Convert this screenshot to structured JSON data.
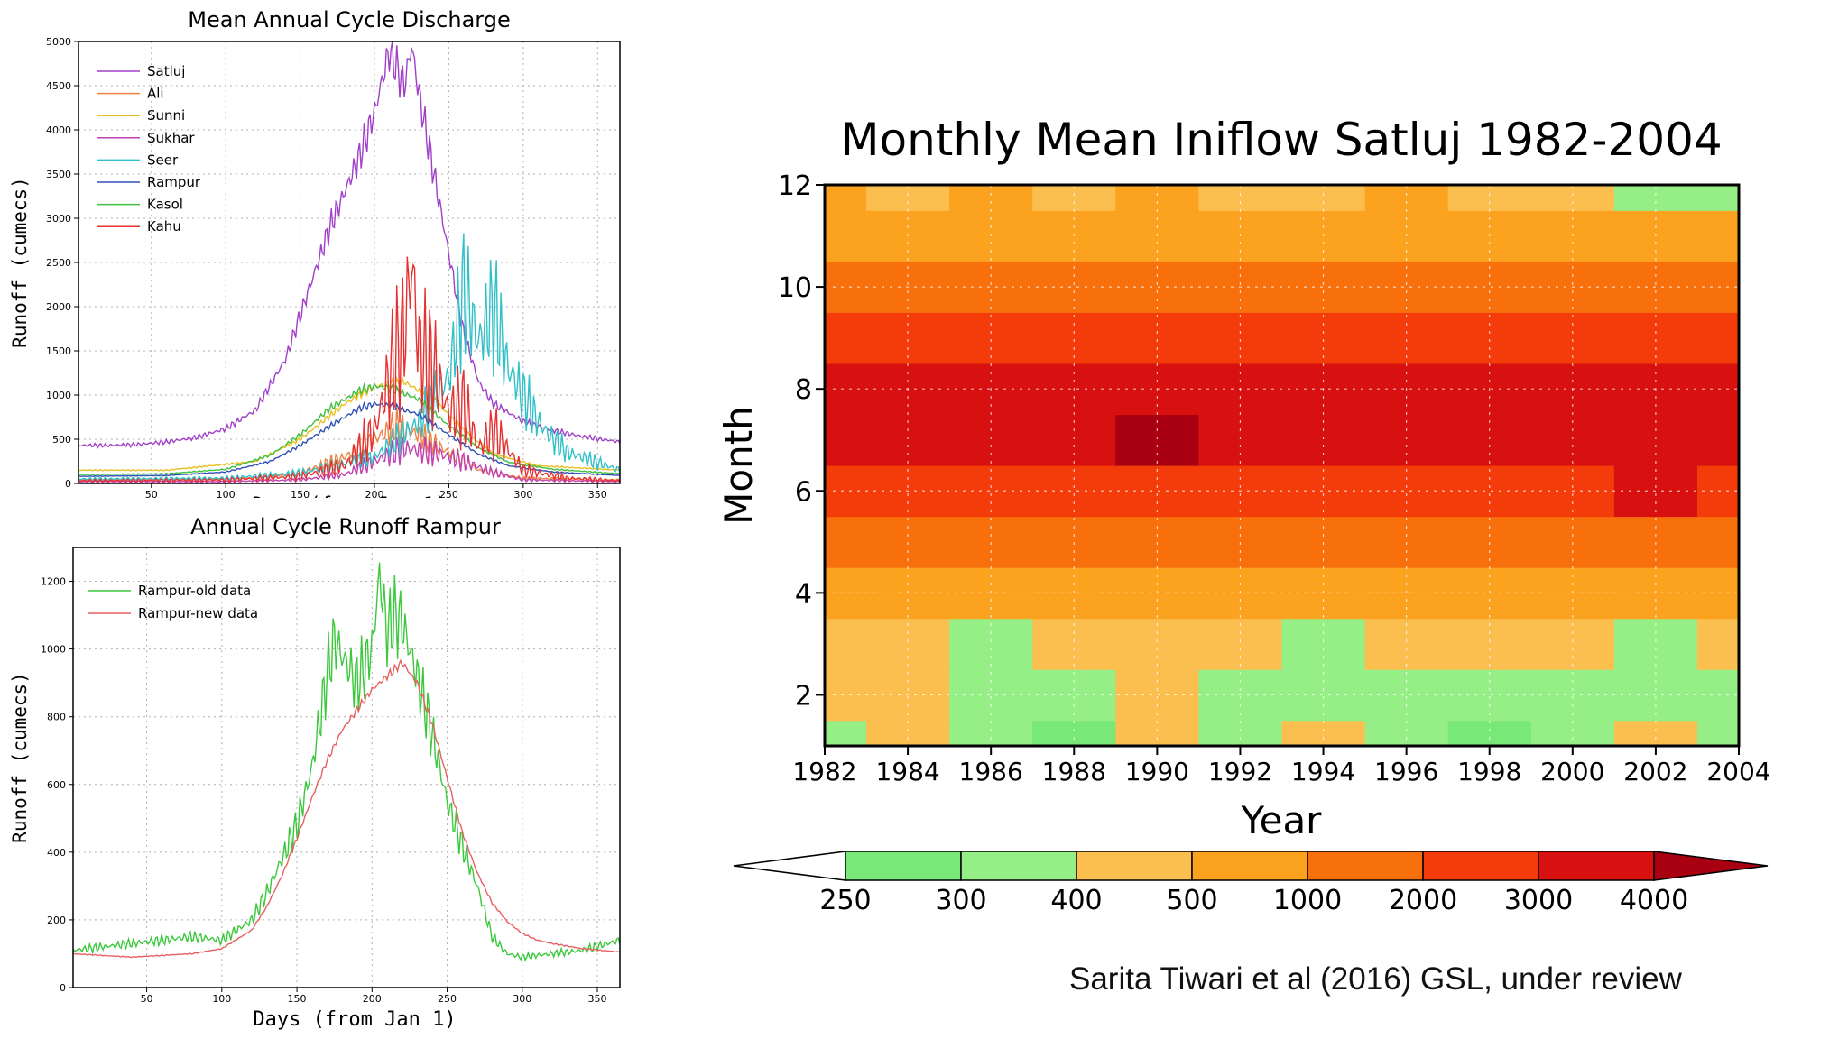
{
  "credit": "Sarita Tiwari et al (2016) GSL, under review",
  "chart_data": [
    {
      "type": "line",
      "title": "Mean Annual Cycle Discharge",
      "xlabel": "Days (from Jan 1)",
      "ylabel": "Runoff (cumecs)",
      "xlim": [
        1,
        365
      ],
      "ylim": [
        0,
        5000
      ],
      "xticks": [
        50,
        100,
        150,
        200,
        250,
        300,
        350
      ],
      "yticks": [
        0,
        500,
        1000,
        1500,
        2000,
        2500,
        3000,
        3500,
        4000,
        4500,
        5000
      ],
      "grid": true,
      "legend_position": "top-left",
      "series": [
        {
          "name": "Satluj",
          "color": "#a040c8",
          "x": [
            1,
            20,
            40,
            60,
            80,
            100,
            120,
            140,
            150,
            160,
            170,
            180,
            190,
            200,
            205,
            210,
            215,
            220,
            225,
            230,
            240,
            250,
            260,
            270,
            280,
            300,
            320,
            340,
            365
          ],
          "y": [
            430,
            430,
            440,
            470,
            520,
            620,
            830,
            1400,
            1900,
            2400,
            2900,
            3300,
            3700,
            4200,
            4550,
            4900,
            4700,
            4500,
            4950,
            4400,
            3500,
            2600,
            1700,
            1150,
            900,
            700,
            600,
            530,
            470
          ]
        },
        {
          "name": "Ali",
          "color": "#f08040",
          "x": [
            1,
            60,
            120,
            150,
            180,
            200,
            215,
            230,
            250,
            270,
            300,
            365
          ],
          "y": [
            40,
            40,
            60,
            120,
            300,
            500,
            650,
            550,
            350,
            150,
            60,
            40
          ]
        },
        {
          "name": "Sunni",
          "color": "#e8c020",
          "x": [
            1,
            60,
            120,
            150,
            180,
            200,
            220,
            240,
            260,
            280,
            310,
            365
          ],
          "y": [
            150,
            150,
            250,
            500,
            900,
            1100,
            1150,
            950,
            600,
            330,
            200,
            150
          ]
        },
        {
          "name": "Sukhar",
          "color": "#c040b0",
          "x": [
            1,
            100,
            150,
            180,
            200,
            220,
            240,
            260,
            280,
            300,
            365
          ],
          "y": [
            20,
            20,
            40,
            100,
            250,
            400,
            350,
            250,
            120,
            40,
            20
          ]
        },
        {
          "name": "Seer",
          "color": "#30c0c8",
          "x": [
            1,
            100,
            150,
            200,
            230,
            250,
            260,
            270,
            280,
            290,
            300,
            310,
            320,
            330,
            365
          ],
          "y": [
            50,
            60,
            120,
            300,
            700,
            1200,
            2200,
            1600,
            2000,
            1300,
            1000,
            700,
            500,
            350,
            150
          ]
        },
        {
          "name": "Rampur",
          "color": "#3050b8",
          "x": [
            1,
            60,
            100,
            130,
            150,
            170,
            190,
            200,
            210,
            230,
            250,
            270,
            290,
            320,
            365
          ],
          "y": [
            80,
            90,
            130,
            250,
            430,
            650,
            850,
            900,
            880,
            780,
            550,
            330,
            200,
            130,
            90
          ]
        },
        {
          "name": "Kasol",
          "color": "#40c040",
          "x": [
            1,
            60,
            100,
            130,
            150,
            170,
            190,
            200,
            210,
            230,
            250,
            270,
            290,
            320,
            365
          ],
          "y": [
            100,
            110,
            160,
            320,
            550,
            850,
            1050,
            1100,
            1080,
            950,
            650,
            400,
            240,
            160,
            110
          ]
        },
        {
          "name": "Kahu",
          "color": "#e83030",
          "x": [
            1,
            100,
            150,
            180,
            200,
            210,
            220,
            225,
            230,
            240,
            250,
            260,
            270,
            280,
            300,
            330,
            365
          ],
          "y": [
            30,
            40,
            80,
            200,
            600,
            1200,
            1700,
            2500,
            1500,
            1300,
            800,
            900,
            400,
            600,
            150,
            60,
            30
          ]
        }
      ]
    },
    {
      "type": "line",
      "title": "Annual Cycle Runoff Rampur",
      "xlabel": "Days (from Jan 1)",
      "ylabel": "Runoff (cumecs)",
      "xlim": [
        1,
        365
      ],
      "ylim": [
        0,
        1300
      ],
      "xticks": [
        50,
        100,
        150,
        200,
        250,
        300,
        350
      ],
      "yticks": [
        0,
        200,
        400,
        600,
        800,
        1000,
        1200
      ],
      "grid": true,
      "legend_position": "top-left",
      "series": [
        {
          "name": "Rampur-old data",
          "color": "#3cc83c",
          "x": [
            1,
            20,
            40,
            60,
            80,
            100,
            120,
            130,
            140,
            150,
            160,
            170,
            175,
            180,
            190,
            200,
            205,
            210,
            215,
            220,
            225,
            230,
            240,
            250,
            260,
            270,
            280,
            290,
            300,
            310,
            320,
            340,
            365
          ],
          "y": [
            110,
            120,
            130,
            140,
            150,
            140,
            200,
            280,
            380,
            480,
            650,
            920,
            1030,
            980,
            900,
            1000,
            1220,
            1050,
            1100,
            1080,
            1000,
            920,
            750,
            550,
            420,
            300,
            150,
            100,
            90,
            95,
            100,
            110,
            140
          ]
        },
        {
          "name": "Rampur-new data",
          "color": "#e86060",
          "x": [
            1,
            20,
            40,
            60,
            80,
            100,
            120,
            130,
            140,
            150,
            160,
            170,
            180,
            190,
            200,
            210,
            220,
            230,
            240,
            250,
            260,
            270,
            280,
            290,
            300,
            310,
            320,
            340,
            365
          ],
          "y": [
            100,
            95,
            90,
            95,
            100,
            115,
            170,
            240,
            330,
            440,
            560,
            670,
            760,
            820,
            880,
            920,
            960,
            900,
            780,
            620,
            460,
            340,
            250,
            195,
            160,
            140,
            130,
            115,
            105
          ]
        }
      ]
    },
    {
      "type": "heatmap",
      "title": "Monthly Mean Iniflow Satluj 1982-2004",
      "xlabel": "Year",
      "ylabel": "Month",
      "xlim": [
        1982,
        2004
      ],
      "ylim": [
        1,
        12
      ],
      "xticks": [
        1982,
        1984,
        1986,
        1988,
        1990,
        1992,
        1994,
        1996,
        1998,
        2000,
        2002,
        2004
      ],
      "yticks": [
        2,
        4,
        6,
        8,
        10,
        12
      ],
      "grid": true,
      "colorbar": {
        "levels": [
          250,
          300,
          400,
          500,
          1000,
          2000,
          3000,
          4000
        ],
        "colors": [
          "#ffffff",
          "#78e878",
          "#96ee86",
          "#fbbf50",
          "#fba21e",
          "#f8700c",
          "#f43c0a",
          "#d81010",
          "#a80010"
        ],
        "position": "bottom"
      },
      "x": [
        1982,
        1984,
        1986,
        1988,
        1990,
        1992,
        1994,
        1996,
        1998,
        2000,
        2002,
        2004
      ],
      "months": [
        1,
        2,
        3,
        4,
        5,
        6,
        7,
        8,
        9,
        10,
        11,
        12
      ],
      "z": [
        [
          380,
          440,
          300,
          280,
          420,
          360,
          440,
          300,
          280,
          360,
          420,
          320
        ],
        [
          420,
          420,
          310,
          320,
          460,
          380,
          330,
          360,
          340,
          380,
          320,
          340
        ],
        [
          460,
          470,
          380,
          400,
          480,
          470,
          360,
          470,
          420,
          460,
          370,
          400
        ],
        [
          600,
          680,
          550,
          600,
          700,
          650,
          600,
          620,
          600,
          620,
          560,
          600
        ],
        [
          1300,
          1400,
          1200,
          1300,
          1500,
          1350,
          1350,
          1300,
          1200,
          1300,
          1400,
          1400
        ],
        [
          2400,
          2600,
          2200,
          2300,
          2700,
          2500,
          2700,
          2300,
          2500,
          2500,
          3400,
          2600
        ],
        [
          3400,
          3600,
          3300,
          3300,
          4200,
          3700,
          3700,
          3500,
          3700,
          3600,
          3800,
          3400
        ],
        [
          3800,
          3600,
          3900,
          3500,
          3700,
          3900,
          3600,
          3900,
          3800,
          3500,
          3400,
          3300
        ],
        [
          2200,
          2500,
          2300,
          2700,
          2500,
          2400,
          2600,
          2400,
          2500,
          2300,
          2400,
          2200
        ],
        [
          1150,
          1200,
          1300,
          1150,
          1200,
          1100,
          1200,
          1100,
          1400,
          1100,
          1150,
          1100
        ],
        [
          650,
          700,
          680,
          640,
          700,
          650,
          650,
          680,
          700,
          650,
          620,
          700
        ],
        [
          520,
          480,
          500,
          470,
          520,
          480,
          460,
          500,
          470,
          480,
          350,
          380
        ]
      ]
    }
  ]
}
